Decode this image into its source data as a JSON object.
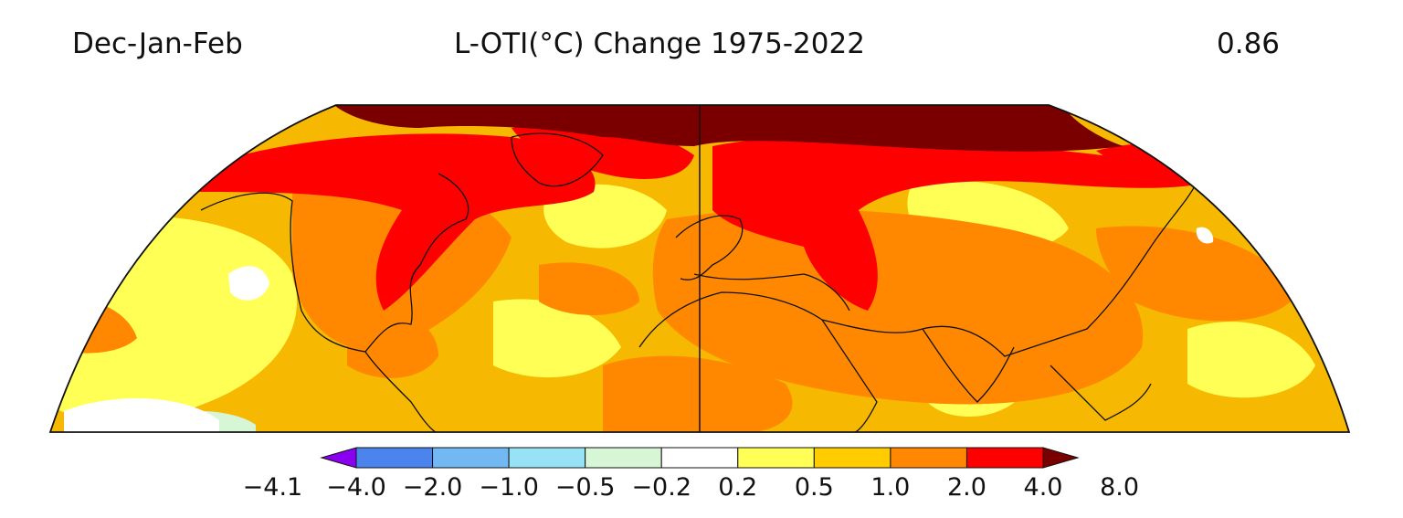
{
  "header": {
    "season": "Dec-Jan-Feb",
    "title": "L-OTI(°C) Change 1975-2022",
    "global_mean": "0.86"
  },
  "colorbar": {
    "ticks": [
      "−4.1",
      "−4.0",
      "−2.0",
      "−1.0",
      "−0.5",
      "−0.2",
      "0.2",
      "0.5",
      "1.0",
      "2.0",
      "4.0",
      "8.0"
    ],
    "colors": [
      "#8a00f0",
      "#4a84ec",
      "#72b8f2",
      "#98e2f8",
      "#d6f6d6",
      "#ffffff",
      "#ffff55",
      "#ffcc00",
      "#ff8800",
      "#ff0000",
      "#7a0000"
    ]
  },
  "map_colors": {
    "background": "#f6b800",
    "warm_light": "#ffff55",
    "orange": "#ff8800",
    "red": "#ff0000",
    "dark_red": "#7a0000",
    "pale_green": "#d6f6d6",
    "white": "#ffffff",
    "coastline": "#111111"
  }
}
